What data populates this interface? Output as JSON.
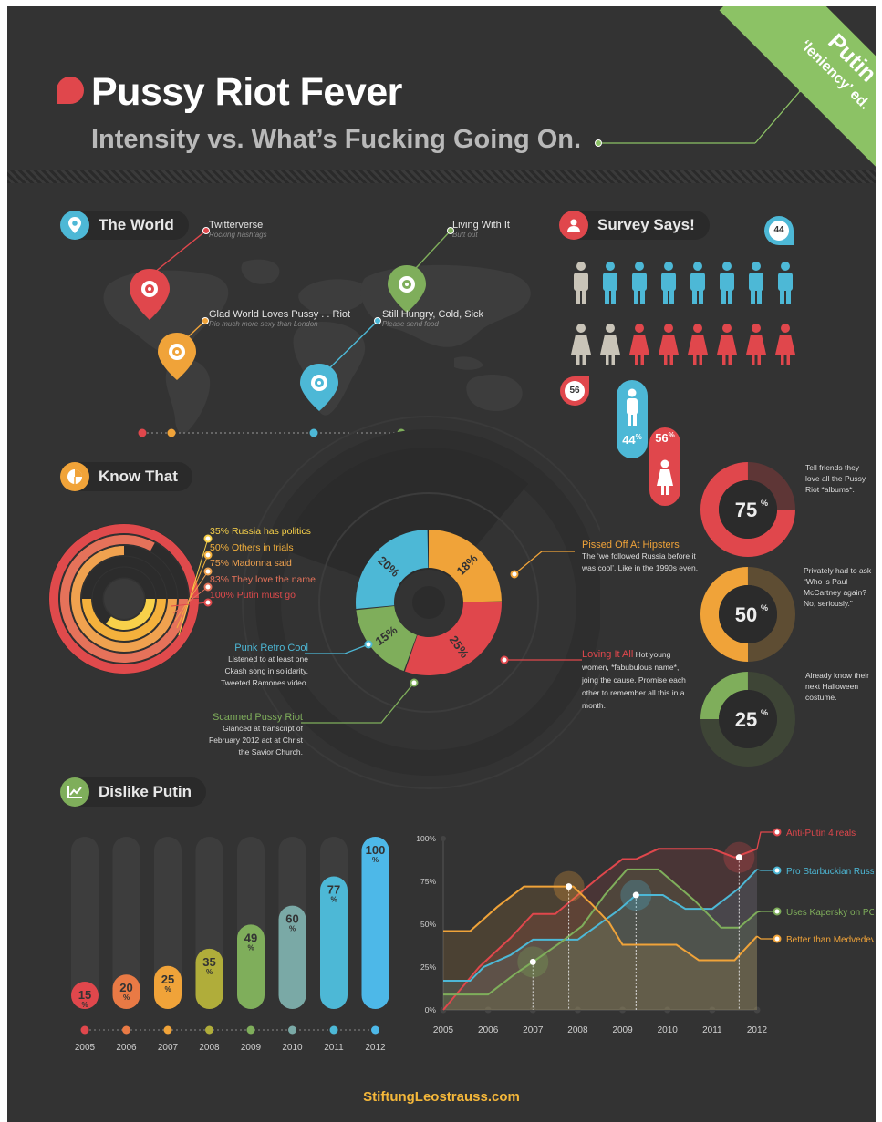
{
  "header": {
    "title": "Pussy Riot Fever",
    "subtitle": "Intensity vs. What’s Fucking Going On.",
    "banner_line1": "Putin",
    "banner_line2": "‘leniency’ ed."
  },
  "world": {
    "section_label": "The World",
    "pins": [
      {
        "label": "Twitterverse",
        "sub": "Rocking hashtags",
        "color": "#e0474c"
      },
      {
        "label": "Glad World Loves Pussy . . Riot",
        "sub": "Rio much more sexy than London",
        "color": "#f0a339"
      },
      {
        "label": "Still Hungry, Cold, Sick",
        "sub": "Please send food",
        "color": "#4db8d6"
      },
      {
        "label": "Living With It",
        "sub": "Butt out",
        "color": "#7fae5b"
      }
    ]
  },
  "survey": {
    "section_label": "Survey Says!",
    "male_badge": "44",
    "female_badge": "56",
    "male_pct": "44",
    "female_pct": "56",
    "pct_sign": "%",
    "male_color": "#4db8d6",
    "female_color": "#e0474c",
    "neutral_color": "#c9c4b8",
    "male_row": {
      "neutral": 1,
      "colored": 7
    },
    "female_row": {
      "neutral": 2,
      "colored": 6
    }
  },
  "know_that": {
    "section_label": "Know That",
    "rings": [
      {
        "pct": 35,
        "text": "Russia has politics",
        "label": "35%",
        "color": "#f8d14a"
      },
      {
        "pct": 50,
        "text": "Others in trials",
        "label": "50%",
        "color": "#f4b13c"
      },
      {
        "pct": 75,
        "text": "Madonna said",
        "label": "75%",
        "color": "#f0a24f"
      },
      {
        "pct": 83,
        "text": "They love the name",
        "label": "83%",
        "color": "#e5725a"
      },
      {
        "pct": 100,
        "text": "Putin must go",
        "label": "100%",
        "color": "#e04a4c"
      }
    ]
  },
  "center_donut": {
    "segments": [
      {
        "label": "18%",
        "value": 18,
        "color": "#f0a339",
        "title": "Pissed Off At Hipsters",
        "desc": "The ‘we followed Russia before it was cool’. Like in the 1990s even."
      },
      {
        "label": "25%",
        "value": 25,
        "color": "#e0474c",
        "title": "Loving It All",
        "desc": "Hot young women, *fabubulous name*, joing the cause. Promise each other to remember all this in a month."
      },
      {
        "label": "15%",
        "value": 15,
        "color": "#7fae5b",
        "title": "Scanned Pussy Riot",
        "desc": "Glanced at transcript of February 2012 act at Christ the Savior Church."
      },
      {
        "label": "20%",
        "value": 20,
        "color": "#4db8d6",
        "title": "Punk Retro Cool",
        "desc": "Listened to at least one Ckash song in solidarity. Tweeted Ramones video."
      }
    ]
  },
  "donuts": [
    {
      "value": "75",
      "pct": 75,
      "color": "#e0474c",
      "dark": "#5e3636",
      "note": "Tell friends they love all the Pussy Riot *albums*."
    },
    {
      "value": "50",
      "pct": 50,
      "color": "#f0a339",
      "dark": "#5e4d33",
      "note": "Privately had to ask “Who is Paul McCartney again? No, seriously.”"
    },
    {
      "value": "25",
      "pct": 25,
      "color": "#7fae5b",
      "dark": "#3e4536",
      "note": "Already know their next Halloween costume."
    }
  ],
  "dislike": {
    "section_label": "Dislike Putin"
  },
  "chart_data": [
    {
      "type": "bar",
      "title": "Dislike Putin",
      "categories": [
        "2005",
        "2006",
        "2007",
        "2008",
        "2009",
        "2010",
        "2011",
        "2012"
      ],
      "values": [
        15,
        20,
        25,
        35,
        49,
        60,
        77,
        100
      ],
      "unit": "%",
      "ylim": [
        0,
        100
      ],
      "colors": [
        "#e0474c",
        "#e97a45",
        "#f0a339",
        "#b0ad3a",
        "#7fae5b",
        "#7aa9a6",
        "#4db8d6",
        "#4db8e8"
      ]
    },
    {
      "type": "line",
      "x": [
        "2005",
        "2006",
        "2007",
        "2008",
        "2009",
        "2010",
        "2011",
        "2012"
      ],
      "yticks": [
        "0%",
        "25%",
        "50%",
        "75%",
        "100%"
      ],
      "ylim": [
        0,
        100
      ],
      "legend": "right",
      "series": [
        {
          "name": "Anti-Putin 4 reals",
          "color": "#e0474c",
          "points": [
            [
              2005,
              0
            ],
            [
              2005.8,
              25
            ],
            [
              2006.5,
              42
            ],
            [
              2007,
              56
            ],
            [
              2007.5,
              56
            ],
            [
              2008.5,
              78
            ],
            [
              2009,
              88
            ],
            [
              2009.3,
              88
            ],
            [
              2009.8,
              94
            ],
            [
              2011,
              94
            ],
            [
              2011.5,
              89
            ],
            [
              2012,
              94
            ]
          ]
        },
        {
          "name": "Pro Starbuckian Russia",
          "color": "#4db8d6",
          "points": [
            [
              2005,
              17
            ],
            [
              2005.6,
              17
            ],
            [
              2005.9,
              25
            ],
            [
              2006.5,
              32
            ],
            [
              2007,
              41
            ],
            [
              2008,
              41
            ],
            [
              2008.9,
              58
            ],
            [
              2009.3,
              67
            ],
            [
              2009.9,
              67
            ],
            [
              2010.4,
              59
            ],
            [
              2011,
              59
            ],
            [
              2011.6,
              71
            ],
            [
              2012,
              82
            ]
          ]
        },
        {
          "name": "Uses Kapersky on PCs",
          "color": "#7fae5b",
          "points": [
            [
              2005,
              9
            ],
            [
              2006,
              9
            ],
            [
              2006.6,
              21
            ],
            [
              2007,
              28
            ],
            [
              2007.6,
              39
            ],
            [
              2008.1,
              49
            ],
            [
              2008.6,
              67
            ],
            [
              2009.1,
              82
            ],
            [
              2009.8,
              82
            ],
            [
              2010.6,
              64
            ],
            [
              2011.2,
              48
            ],
            [
              2011.6,
              48
            ],
            [
              2012,
              57
            ]
          ]
        },
        {
          "name": "Better than Medvedev",
          "color": "#f0a339",
          "points": [
            [
              2005,
              46
            ],
            [
              2005.6,
              46
            ],
            [
              2006.2,
              60
            ],
            [
              2006.8,
              72
            ],
            [
              2007.9,
              72
            ],
            [
              2008.3,
              62
            ],
            [
              2008.7,
              51
            ],
            [
              2009,
              38
            ],
            [
              2010.2,
              38
            ],
            [
              2010.7,
              29
            ],
            [
              2011.5,
              29
            ],
            [
              2012,
              43
            ]
          ]
        }
      ]
    }
  ],
  "footer": "StiftungLeostrauss.com"
}
